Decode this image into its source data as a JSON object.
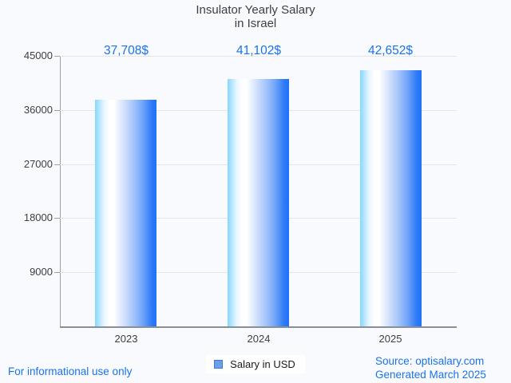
{
  "title": {
    "line1": "Insulator Yearly Salary",
    "line2": "in Israel"
  },
  "chart_data": {
    "type": "bar",
    "title": "Insulator Yearly Salary in Israel",
    "categories": [
      "2023",
      "2024",
      "2025"
    ],
    "values": [
      37708,
      41102,
      42652
    ],
    "value_labels": [
      "37,708$",
      "41,102$",
      "42,652$"
    ],
    "series_name": "Salary in USD",
    "ylim": [
      0,
      45000
    ],
    "yticks": [
      9000,
      18000,
      27000,
      36000,
      45000
    ],
    "grid": true,
    "legend_position": "bottom",
    "xlabel": "",
    "ylabel": ""
  },
  "legend": {
    "label": "Salary in USD"
  },
  "footer": {
    "disclaimer": "For informational use only",
    "source": "Source: optisalary.com",
    "generated": "Generated March 2025"
  },
  "colors": {
    "background": "#f9fafd",
    "text": "#3c4043",
    "accent": "#1a73e8",
    "grid": "#e3e6ea",
    "axis": "#9aa0a6",
    "bar_gradient": [
      "#87d7fe",
      "#ffffff",
      "#1f71fa"
    ],
    "legend_marker_fill": "#6d9eeb",
    "legend_marker_border": "#3e7dd6"
  }
}
